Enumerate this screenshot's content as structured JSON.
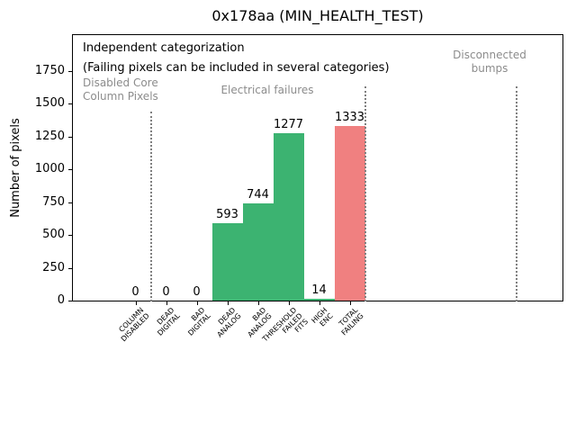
{
  "chart_data": {
    "type": "bar",
    "title": "0x178aa (MIN_HEALTH_TEST)",
    "ylabel": "Number of pixels",
    "xlabel": "",
    "categories": [
      "COLUMN\nDISABLED",
      "DEAD\nDIGITAL",
      "BAD\nDIGITAL",
      "DEAD\nANALOG",
      "BAD\nANALOG",
      "THRESHOLD\nFAILED\nFITS",
      "HIGH\nENC",
      "TOTAL\nFAILING"
    ],
    "values": [
      0,
      0,
      0,
      593,
      744,
      1277,
      14,
      1333
    ],
    "bar_value_labels": [
      "0",
      "0",
      "0",
      "593",
      "744",
      "1277",
      "14",
      "1333"
    ],
    "bar_color_roles": [
      "green",
      "green",
      "green",
      "green",
      "green",
      "green",
      "green",
      "red"
    ],
    "colors": {
      "green": "#3cb371",
      "red": "#f08080",
      "gray_text": "#8c8c8c",
      "separator": "#7f7f7f",
      "black": "#000000"
    },
    "ylim": [
      0,
      2031
    ],
    "yticks": [
      0,
      250,
      500,
      750,
      1000,
      1250,
      1500,
      1750
    ],
    "grid": false,
    "legend": null,
    "bar_width_categories": 1.0,
    "annotations": [
      {
        "id": "independent-categorization",
        "text": "Independent categorization",
        "x": 92,
        "y": 46,
        "color": "black",
        "align": "left"
      },
      {
        "id": "categorization-note",
        "text": "(Failing pixels can be included in several categories)",
        "x": 92,
        "y": 68,
        "color": "black",
        "align": "left"
      },
      {
        "id": "region-disabled-core-column",
        "text": "Disabled Core\nColumn Pixels",
        "x": 92,
        "y": 85,
        "color": "gray",
        "align": "left"
      },
      {
        "id": "region-electrical-failures",
        "text": "Electrical failures",
        "x": 297,
        "y": 93,
        "color": "gray",
        "align": "center"
      },
      {
        "id": "region-disconnected-bumps",
        "text": "Disconnected\nbumps",
        "x": 544,
        "y": 54,
        "color": "gray",
        "align": "center"
      }
    ],
    "separators": [
      {
        "x_category": 0.5,
        "top_value": 1450
      },
      {
        "x_category": 7.5,
        "top_value": 1640
      },
      {
        "x_category": 12.45,
        "top_value": 1640
      }
    ]
  }
}
